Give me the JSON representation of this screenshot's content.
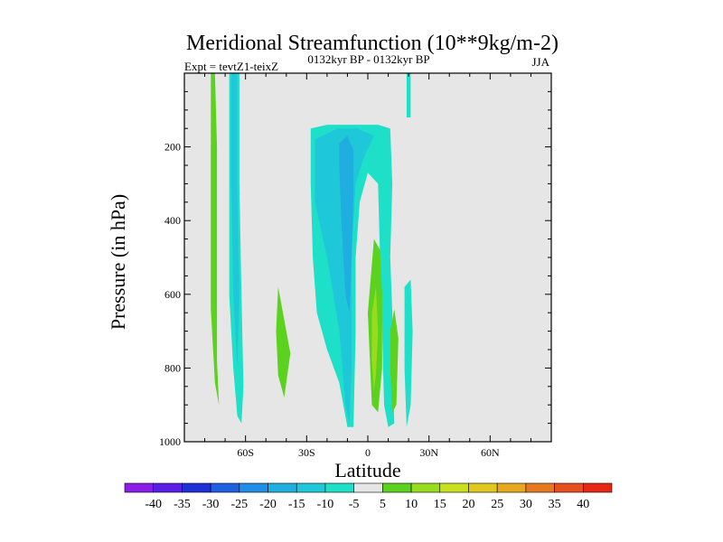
{
  "chart_data": {
    "type": "heatmap",
    "title": "Meridional Streamfunction (10**9kg/m-2)",
    "subtitle_left": "Expt = tevtZ1-teixZ",
    "subtitle_center": "0132kyr BP - 0132kyr BP",
    "subtitle_right": "JJA",
    "xlabel": "Latitude",
    "ylabel": "Pressure (in hPa)",
    "xlim": [
      -90,
      90
    ],
    "ylim": [
      1000,
      0
    ],
    "x_ticks": [
      {
        "value": -60,
        "label": "60S"
      },
      {
        "value": -30,
        "label": "30S"
      },
      {
        "value": 0,
        "label": "0"
      },
      {
        "value": 30,
        "label": "30N"
      },
      {
        "value": 60,
        "label": "60N"
      }
    ],
    "y_ticks": [
      {
        "value": 200,
        "label": "200"
      },
      {
        "value": 400,
        "label": "400"
      },
      {
        "value": 600,
        "label": "600"
      },
      {
        "value": 800,
        "label": "800"
      },
      {
        "value": 1000,
        "label": "1000"
      }
    ],
    "colorbar": {
      "labels": [
        "-40",
        "-35",
        "-30",
        "-25",
        "-20",
        "-15",
        "-10",
        "-5",
        "5",
        "10",
        "15",
        "20",
        "25",
        "30",
        "35",
        "40"
      ],
      "colors": [
        "#8a1ee6",
        "#5a1ee6",
        "#2030d8",
        "#1f60e0",
        "#1e8ee6",
        "#1eaee0",
        "#1ec8d8",
        "#1ee0c8",
        "#e6e6e6",
        "#5ad21e",
        "#98dc1e",
        "#c8e01e",
        "#e0c81e",
        "#e6a81e",
        "#e6781e",
        "#e6501e",
        "#e62814"
      ]
    },
    "background_color": "#e6e6e6",
    "regions": [
      {
        "name": "green-strip-65s",
        "color": "#5ad21e",
        "points": [
          [
            -77,
            0
          ],
          [
            -75,
            0
          ],
          [
            -74,
            200
          ],
          [
            -74,
            500
          ],
          [
            -74,
            780
          ],
          [
            -73,
            900
          ],
          [
            -75,
            840
          ],
          [
            -77,
            640
          ],
          [
            -77,
            300
          ]
        ]
      },
      {
        "name": "cyan-band-60s",
        "color": "#1ee0c8",
        "points": [
          [
            -68,
            0
          ],
          [
            -63,
            0
          ],
          [
            -63,
            300
          ],
          [
            -62,
            600
          ],
          [
            -61,
            850
          ],
          [
            -62,
            950
          ],
          [
            -64,
            930
          ],
          [
            -66,
            800
          ],
          [
            -68,
            600
          ],
          [
            -68,
            200
          ]
        ]
      },
      {
        "name": "blue-core-60s",
        "color": "#1ec8d8",
        "points": [
          [
            -67,
            0
          ],
          [
            -64,
            0
          ],
          [
            -64,
            300
          ],
          [
            -63,
            600
          ],
          [
            -64,
            800
          ],
          [
            -66,
            600
          ],
          [
            -67,
            300
          ]
        ]
      },
      {
        "name": "green-blob-40s",
        "color": "#5ad21e",
        "points": [
          [
            -44,
            580
          ],
          [
            -42,
            640
          ],
          [
            -38,
            760
          ],
          [
            -41,
            880
          ],
          [
            -44,
            820
          ],
          [
            -45,
            700
          ]
        ]
      },
      {
        "name": "cyan-cell-tropics",
        "color": "#1ee0c8",
        "points": [
          [
            -28,
            150
          ],
          [
            -20,
            140
          ],
          [
            -10,
            140
          ],
          [
            5,
            140
          ],
          [
            11,
            150
          ],
          [
            12,
            300
          ],
          [
            11,
            500
          ],
          [
            12,
            650
          ],
          [
            12,
            800
          ],
          [
            13,
            950
          ],
          [
            10,
            960
          ],
          [
            8,
            900
          ],
          [
            7,
            700
          ],
          [
            6,
            500
          ],
          [
            5,
            300
          ],
          [
            0,
            270
          ],
          [
            -4,
            350
          ],
          [
            -6,
            500
          ],
          [
            -6,
            700
          ],
          [
            -7,
            960
          ],
          [
            -10,
            960
          ],
          [
            -14,
            840
          ],
          [
            -20,
            750
          ],
          [
            -25,
            650
          ],
          [
            -27,
            500
          ],
          [
            -28,
            300
          ]
        ]
      },
      {
        "name": "blue-cell-tropics-outer",
        "color": "#1ec8d8",
        "points": [
          [
            -26,
            180
          ],
          [
            -15,
            150
          ],
          [
            -5,
            150
          ],
          [
            3,
            170
          ],
          [
            -2,
            230
          ],
          [
            -6,
            300
          ],
          [
            -8,
            500
          ],
          [
            -8,
            800
          ],
          [
            -9,
            950
          ],
          [
            -11,
            900
          ],
          [
            -14,
            700
          ],
          [
            -20,
            500
          ],
          [
            -26,
            350
          ]
        ]
      },
      {
        "name": "blue-cell-tropics-inner",
        "color": "#1eaee0",
        "points": [
          [
            -14,
            190
          ],
          [
            -10,
            170
          ],
          [
            -7,
            210
          ],
          [
            -7,
            320
          ],
          [
            -8,
            500
          ],
          [
            -9,
            650
          ],
          [
            -11,
            600
          ],
          [
            -13,
            400
          ],
          [
            -14,
            250
          ]
        ]
      },
      {
        "name": "cyan-strip-20n",
        "color": "#1ee0c8",
        "points": [
          [
            19,
            0
          ],
          [
            21,
            0
          ],
          [
            21,
            120
          ],
          [
            19,
            120
          ]
        ]
      },
      {
        "name": "cyan-strip-25n",
        "color": "#1ee0c8",
        "points": [
          [
            18,
            580
          ],
          [
            21,
            560
          ],
          [
            22,
            700
          ],
          [
            21,
            900
          ],
          [
            19,
            960
          ],
          [
            18,
            800
          ]
        ]
      },
      {
        "name": "green-cell-5n",
        "color": "#5ad21e",
        "points": [
          [
            0,
            650
          ],
          [
            3,
            450
          ],
          [
            6,
            480
          ],
          [
            7,
            600
          ],
          [
            7,
            800
          ],
          [
            5,
            920
          ],
          [
            2,
            900
          ],
          [
            1,
            780
          ]
        ]
      },
      {
        "name": "lightgreen-core-5n",
        "color": "#98dc1e",
        "points": [
          [
            2,
            650
          ],
          [
            4,
            580
          ],
          [
            5,
            700
          ],
          [
            4,
            820
          ],
          [
            3,
            860
          ],
          [
            2,
            780
          ]
        ]
      },
      {
        "name": "green-cell-13n",
        "color": "#5ad21e",
        "points": [
          [
            11,
            700
          ],
          [
            13,
            640
          ],
          [
            15,
            720
          ],
          [
            14,
            900
          ],
          [
            12,
            920
          ],
          [
            11,
            800
          ]
        ]
      }
    ]
  }
}
